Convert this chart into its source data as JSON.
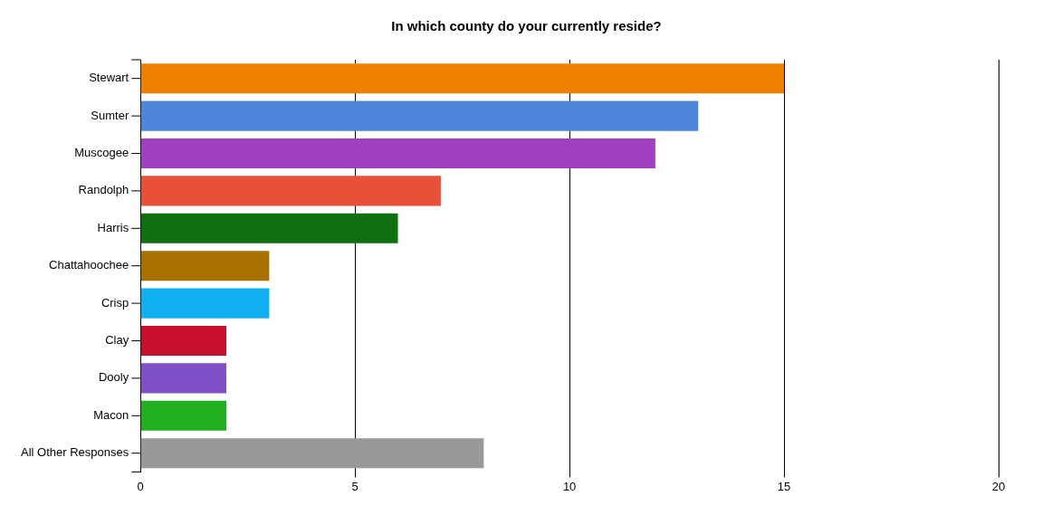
{
  "chart_data": {
    "type": "bar",
    "orientation": "horizontal",
    "title": "In which county do your currently reside?",
    "categories": [
      "Stewart",
      "Sumter",
      "Muscogee",
      "Randolph",
      "Harris",
      "Chattahoochee",
      "Crisp",
      "Clay",
      "Dooly",
      "Macon",
      "All Other Responses"
    ],
    "values": [
      15,
      13,
      12,
      7,
      6,
      3,
      3,
      2,
      2,
      2,
      8
    ],
    "colors": [
      "#f08000",
      "#4f86dc",
      "#a040c0",
      "#e8503a",
      "#107010",
      "#a87000",
      "#10b0f0",
      "#c8102e",
      "#8050c8",
      "#20b020",
      "#999999"
    ],
    "xlim": [
      0,
      20
    ],
    "xticks": [
      0,
      5,
      10,
      15,
      20
    ],
    "grid": "x",
    "legend": false
  }
}
